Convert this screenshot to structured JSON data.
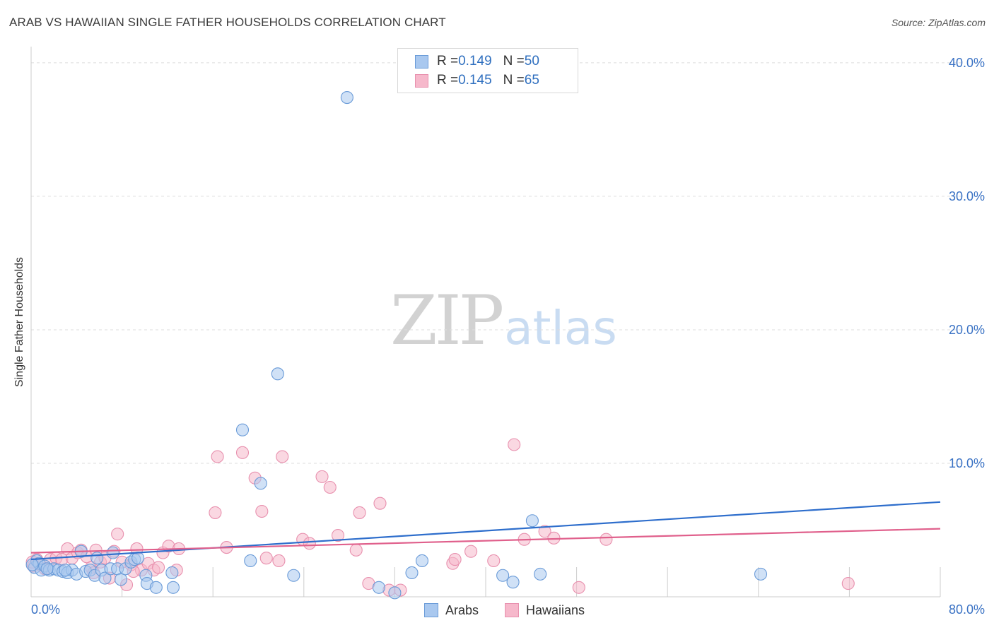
{
  "header": {
    "title": "ARAB VS HAWAIIAN SINGLE FATHER HOUSEHOLDS CORRELATION CHART",
    "source": "Source: ZipAtlas.com"
  },
  "watermark": {
    "zip": "ZIP",
    "atlas": "atlas"
  },
  "legend": {
    "arabs": {
      "r_label": "R = ",
      "r_value": "0.149",
      "n_label": "N = ",
      "n_value": "50"
    },
    "hawaiians": {
      "r_label": "R = ",
      "r_value": "0.145",
      "n_label": "N = ",
      "n_value": "65"
    }
  },
  "colors": {
    "arabs_fill": "#a9c8ef",
    "arabs_stroke": "#6a9bd8",
    "arabs_line": "#2e6ecc",
    "hawaiians_fill": "#f6b8cb",
    "hawaiians_stroke": "#e890ae",
    "hawaiians_line": "#e0608c",
    "tick_label": "#3a72c4",
    "grid": "#dddddd"
  },
  "chart_data": {
    "type": "scatter",
    "title": "ARAB VS HAWAIIAN SINGLE FATHER HOUSEHOLDS CORRELATION CHART",
    "xlabel": "",
    "ylabel": "Single Father Households",
    "xlim": [
      0,
      80
    ],
    "ylim": [
      0,
      41
    ],
    "x_tick_labels": [
      "0.0%",
      "80.0%"
    ],
    "y_ticks": [
      10,
      20,
      30,
      40
    ],
    "y_tick_labels": [
      "10.0%",
      "20.0%",
      "30.0%",
      "40.0%"
    ],
    "legend_bottom": [
      "Arabs",
      "Hawaiians"
    ],
    "series": [
      {
        "name": "Arabs",
        "r": 0.149,
        "n": 50,
        "trend": {
          "x": [
            0,
            80
          ],
          "y": [
            2.8,
            7.1
          ]
        },
        "points": [
          [
            0.3,
            2.2
          ],
          [
            0.5,
            2.7
          ],
          [
            0.7,
            2.5
          ],
          [
            0.9,
            2.0
          ],
          [
            1.2,
            2.3
          ],
          [
            1.6,
            2.0
          ],
          [
            2.0,
            2.1
          ],
          [
            2.4,
            2.0
          ],
          [
            2.8,
            1.9
          ],
          [
            3.2,
            1.8
          ],
          [
            3.6,
            2.0
          ],
          [
            4.0,
            1.7
          ],
          [
            4.4,
            3.4
          ],
          [
            4.8,
            1.9
          ],
          [
            5.2,
            2.0
          ],
          [
            5.6,
            1.6
          ],
          [
            5.8,
            2.9
          ],
          [
            6.2,
            2.0
          ],
          [
            6.5,
            1.4
          ],
          [
            7.0,
            2.1
          ],
          [
            7.2,
            3.3
          ],
          [
            7.6,
            2.1
          ],
          [
            7.9,
            1.3
          ],
          [
            8.3,
            2.1
          ],
          [
            8.8,
            2.6
          ],
          [
            9.1,
            2.8
          ],
          [
            9.4,
            2.9
          ],
          [
            10.1,
            1.6
          ],
          [
            10.2,
            1.0
          ],
          [
            11.0,
            0.7
          ],
          [
            12.4,
            1.8
          ],
          [
            12.5,
            0.7
          ],
          [
            18.6,
            12.5
          ],
          [
            19.3,
            2.7
          ],
          [
            20.2,
            8.5
          ],
          [
            21.7,
            16.7
          ],
          [
            23.1,
            1.6
          ],
          [
            27.8,
            37.4
          ],
          [
            30.6,
            0.7
          ],
          [
            32.0,
            0.3
          ],
          [
            33.5,
            1.8
          ],
          [
            34.4,
            2.7
          ],
          [
            41.5,
            1.6
          ],
          [
            42.4,
            1.1
          ],
          [
            44.1,
            5.7
          ],
          [
            44.8,
            1.7
          ],
          [
            64.2,
            1.7
          ],
          [
            0.1,
            2.4
          ],
          [
            1.4,
            2.1
          ],
          [
            3.0,
            2.0
          ]
        ]
      },
      {
        "name": "Hawaiians",
        "r": 0.145,
        "n": 65,
        "trend": {
          "x": [
            0,
            80
          ],
          "y": [
            3.3,
            5.1
          ]
        },
        "points": [
          [
            0.2,
            2.3
          ],
          [
            0.5,
            2.8
          ],
          [
            0.8,
            2.4
          ],
          [
            1.2,
            2.1
          ],
          [
            1.7,
            2.8
          ],
          [
            2.2,
            2.9
          ],
          [
            2.7,
            2.8
          ],
          [
            3.2,
            3.6
          ],
          [
            3.6,
            2.9
          ],
          [
            4.1,
            3.3
          ],
          [
            4.4,
            3.5
          ],
          [
            4.9,
            3.0
          ],
          [
            5.3,
            2.2
          ],
          [
            5.7,
            3.5
          ],
          [
            6.1,
            2.6
          ],
          [
            6.5,
            2.9
          ],
          [
            6.9,
            1.4
          ],
          [
            7.3,
            3.4
          ],
          [
            7.6,
            4.7
          ],
          [
            8.0,
            2.6
          ],
          [
            8.4,
            0.9
          ],
          [
            8.8,
            2.4
          ],
          [
            9.3,
            3.6
          ],
          [
            9.7,
            2.0
          ],
          [
            10.3,
            2.5
          ],
          [
            10.8,
            2.0
          ],
          [
            11.2,
            2.2
          ],
          [
            11.6,
            3.3
          ],
          [
            12.1,
            3.8
          ],
          [
            13.0,
            3.6
          ],
          [
            16.2,
            6.3
          ],
          [
            16.4,
            10.5
          ],
          [
            17.2,
            3.7
          ],
          [
            18.6,
            10.8
          ],
          [
            19.7,
            8.9
          ],
          [
            20.3,
            6.4
          ],
          [
            20.7,
            2.9
          ],
          [
            21.8,
            2.7
          ],
          [
            22.1,
            10.5
          ],
          [
            23.9,
            4.3
          ],
          [
            24.5,
            4.0
          ],
          [
            25.6,
            9.0
          ],
          [
            26.3,
            8.2
          ],
          [
            27.0,
            4.6
          ],
          [
            28.6,
            3.5
          ],
          [
            28.9,
            6.3
          ],
          [
            29.7,
            1.0
          ],
          [
            30.7,
            7.0
          ],
          [
            31.5,
            0.5
          ],
          [
            32.5,
            0.5
          ],
          [
            37.1,
            2.5
          ],
          [
            37.3,
            2.8
          ],
          [
            38.7,
            3.4
          ],
          [
            40.7,
            2.7
          ],
          [
            42.5,
            11.4
          ],
          [
            43.4,
            4.3
          ],
          [
            45.2,
            4.9
          ],
          [
            46.0,
            4.4
          ],
          [
            48.2,
            0.7
          ],
          [
            50.6,
            4.3
          ],
          [
            71.9,
            1.0
          ],
          [
            5.5,
            1.8
          ],
          [
            9.0,
            1.9
          ],
          [
            12.8,
            2.0
          ],
          [
            0.1,
            2.6
          ]
        ]
      }
    ]
  }
}
